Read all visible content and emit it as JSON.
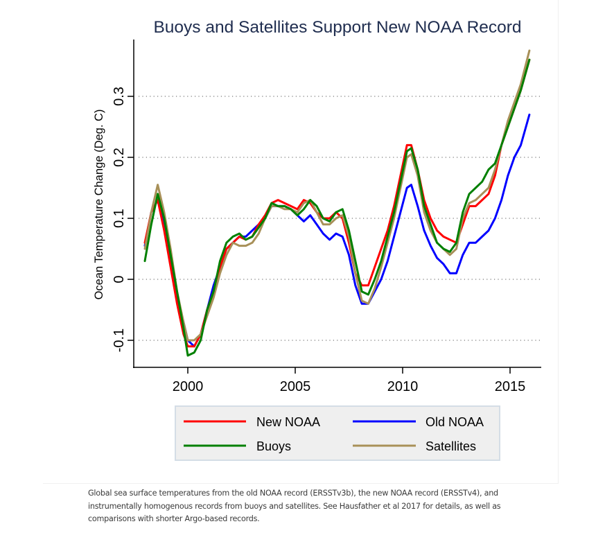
{
  "chart_data": {
    "type": "line",
    "title": "Buoys and Satellites Support New NOAA Record",
    "xlabel": "",
    "ylabel": "Ocean Temperature Change (Deg. C)",
    "xlim": [
      1997.5,
      2016.5
    ],
    "ylim": [
      -0.145,
      0.39
    ],
    "xticks": [
      2000,
      2005,
      2010,
      2015
    ],
    "xtick_labels": [
      "2000",
      "2005",
      "2010",
      "2015"
    ],
    "yticks": [
      -0.1,
      0,
      0.1,
      0.2,
      0.3
    ],
    "ytick_labels": [
      "-0.1",
      "0",
      "0.1",
      "0.2",
      "0.3"
    ],
    "grid": "horizontal-dotted",
    "legend_position": "bottom",
    "x": [
      1998.0,
      1998.3,
      1998.6,
      1998.9,
      1999.2,
      1999.5,
      1999.8,
      2000.0,
      2000.3,
      2000.6,
      2000.9,
      2001.2,
      2001.5,
      2001.8,
      2002.1,
      2002.4,
      2002.7,
      2003.0,
      2003.3,
      2003.6,
      2003.9,
      2004.2,
      2004.5,
      2004.8,
      2005.1,
      2005.4,
      2005.7,
      2006.0,
      2006.3,
      2006.6,
      2006.9,
      2007.2,
      2007.5,
      2007.8,
      2008.1,
      2008.4,
      2008.7,
      2009.0,
      2009.3,
      2009.6,
      2009.9,
      2010.2,
      2010.4,
      2010.7,
      2011.0,
      2011.3,
      2011.6,
      2011.9,
      2012.2,
      2012.5,
      2012.8,
      2013.1,
      2013.4,
      2013.7,
      2014.0,
      2014.3,
      2014.6,
      2014.9,
      2015.2,
      2015.5,
      2015.9
    ],
    "series": [
      {
        "name": "New NOAA",
        "color": "#ff0000",
        "values": [
          0.06,
          0.11,
          0.13,
          0.08,
          0.02,
          -0.04,
          -0.09,
          -0.11,
          -0.11,
          -0.09,
          -0.05,
          -0.02,
          0.02,
          0.05,
          0.06,
          0.07,
          0.065,
          0.07,
          0.09,
          0.105,
          0.125,
          0.13,
          0.125,
          0.12,
          0.115,
          0.13,
          0.125,
          0.11,
          0.1,
          0.1,
          0.11,
          0.1,
          0.06,
          0.01,
          -0.01,
          -0.01,
          0.02,
          0.05,
          0.08,
          0.12,
          0.17,
          0.22,
          0.22,
          0.18,
          0.13,
          0.1,
          0.08,
          0.07,
          0.065,
          0.06,
          0.09,
          0.12,
          0.12,
          0.13,
          0.14,
          0.17,
          0.22,
          0.25,
          0.28,
          0.31,
          0.36
        ]
      },
      {
        "name": "Old NOAA",
        "color": "#0000ff",
        "values": [
          0.055,
          0.11,
          0.13,
          0.09,
          0.03,
          -0.03,
          -0.07,
          -0.1,
          -0.11,
          -0.09,
          -0.05,
          -0.01,
          0.02,
          0.05,
          0.06,
          0.07,
          0.07,
          0.08,
          0.09,
          0.1,
          0.12,
          0.12,
          0.12,
          0.115,
          0.105,
          0.095,
          0.105,
          0.09,
          0.075,
          0.065,
          0.075,
          0.07,
          0.04,
          -0.01,
          -0.04,
          -0.04,
          -0.02,
          0.0,
          0.03,
          0.07,
          0.11,
          0.15,
          0.155,
          0.12,
          0.08,
          0.055,
          0.035,
          0.025,
          0.01,
          0.01,
          0.04,
          0.06,
          0.06,
          0.07,
          0.08,
          0.1,
          0.13,
          0.17,
          0.2,
          0.22,
          0.27
        ]
      },
      {
        "name": "Buoys",
        "color": "#008000",
        "values": [
          0.03,
          0.09,
          0.14,
          0.1,
          0.04,
          -0.02,
          -0.08,
          -0.125,
          -0.12,
          -0.1,
          -0.05,
          -0.02,
          0.03,
          0.06,
          0.07,
          0.075,
          0.065,
          0.07,
          0.085,
          0.1,
          0.125,
          0.12,
          0.12,
          0.115,
          0.105,
          0.115,
          0.13,
          0.12,
          0.1,
          0.095,
          0.11,
          0.115,
          0.08,
          0.03,
          -0.02,
          -0.025,
          0.0,
          0.03,
          0.07,
          0.11,
          0.16,
          0.21,
          0.215,
          0.18,
          0.12,
          0.09,
          0.06,
          0.05,
          0.045,
          0.06,
          0.11,
          0.14,
          0.15,
          0.16,
          0.18,
          0.19,
          0.22,
          0.25,
          0.28,
          0.31,
          0.36
        ]
      },
      {
        "name": "Satellites",
        "color": "#a89058",
        "values": [
          0.05,
          0.11,
          0.155,
          0.11,
          0.05,
          -0.02,
          -0.07,
          -0.1,
          -0.1,
          -0.09,
          -0.06,
          -0.03,
          0.01,
          0.04,
          0.06,
          0.055,
          0.055,
          0.06,
          0.075,
          0.1,
          0.12,
          0.12,
          0.115,
          0.115,
          0.11,
          0.125,
          0.13,
          0.11,
          0.09,
          0.09,
          0.1,
          0.105,
          0.07,
          0.01,
          -0.035,
          -0.04,
          -0.015,
          0.02,
          0.06,
          0.1,
          0.15,
          0.2,
          0.205,
          0.17,
          0.11,
          0.08,
          0.06,
          0.05,
          0.04,
          0.05,
          0.1,
          0.125,
          0.13,
          0.14,
          0.15,
          0.18,
          0.22,
          0.26,
          0.29,
          0.32,
          0.375
        ]
      }
    ]
  },
  "caption": "Global sea surface temperatures from the old NOAA record (ERSSTv3b), the new NOAA record (ERSSTv4), and instrumentally homogenous records from buoys and satellites. See Hausfather et al 2017 for details, as well as comparisons with shorter Argo-based records."
}
